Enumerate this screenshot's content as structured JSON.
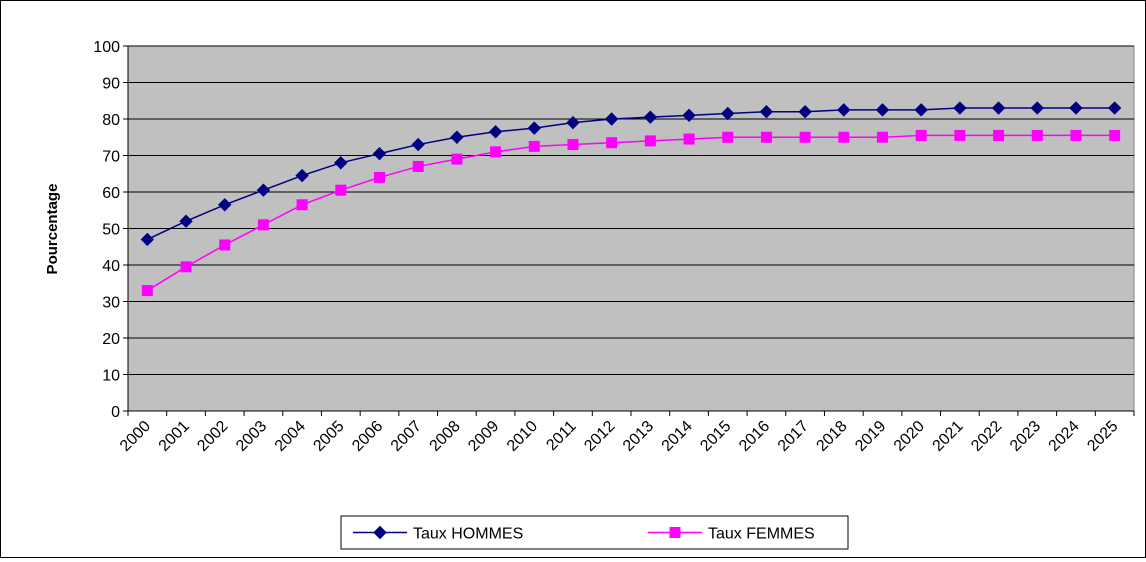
{
  "chart_data": {
    "type": "line",
    "title": "",
    "xlabel": "",
    "ylabel": "Pourcentage",
    "ylim": [
      0,
      100
    ],
    "yticks": [
      0,
      10,
      20,
      30,
      40,
      50,
      60,
      70,
      80,
      90,
      100
    ],
    "grid": true,
    "legend_position": "bottom",
    "plot_background": "#c0c0c0",
    "categories": [
      "2000",
      "2001",
      "2002",
      "2003",
      "2004",
      "2005",
      "2006",
      "2007",
      "2008",
      "2009",
      "2010",
      "2011",
      "2012",
      "2013",
      "2014",
      "2015",
      "2016",
      "2017",
      "2018",
      "2019",
      "2020",
      "2021",
      "2022",
      "2023",
      "2024",
      "2025"
    ],
    "series": [
      {
        "name": "Taux HOMMES",
        "color": "#000080",
        "marker": "diamond",
        "values": [
          47,
          52,
          56.5,
          60.5,
          64.5,
          68,
          70.5,
          73,
          75,
          76.5,
          77.5,
          79,
          80,
          80.5,
          81,
          81.5,
          82,
          82,
          82.5,
          82.5,
          82.5,
          83,
          83,
          83,
          83,
          83
        ]
      },
      {
        "name": "Taux FEMMES",
        "color": "#ff00ff",
        "marker": "square",
        "values": [
          33,
          39.5,
          45.5,
          51,
          56.5,
          60.5,
          64,
          67,
          69,
          71,
          72.5,
          73,
          73.5,
          74,
          74.5,
          75,
          75,
          75,
          75,
          75,
          75.5,
          75.5,
          75.5,
          75.5,
          75.5,
          75.5
        ]
      }
    ]
  }
}
